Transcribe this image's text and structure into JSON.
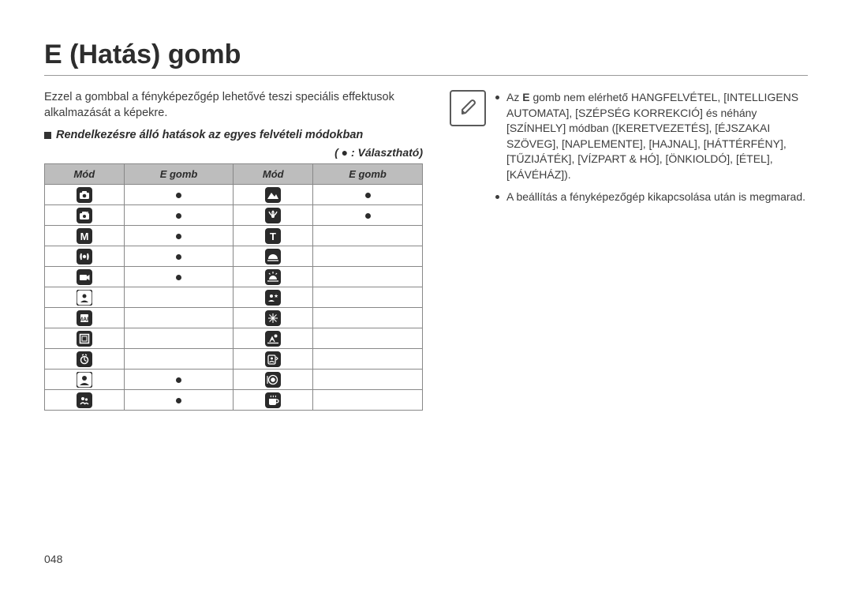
{
  "page": {
    "title": "E (Hatás) gomb",
    "intro": "Ezzel a gombbal a fényképezőgép lehetővé teszi speciális effektusok alkalmazását a képekre.",
    "section_heading": "Rendelkezésre álló hatások az egyes felvételi módokban",
    "section_subright": "( ● : Választható)",
    "page_number": "048"
  },
  "table": {
    "headers": [
      "Mód",
      "E gomb",
      "Mód",
      "E gomb"
    ],
    "col_widths": [
      "21%",
      "29%",
      "21%",
      "29%"
    ],
    "header_bg": "#bdbdbd",
    "border_color": "#888888",
    "rows": [
      {
        "l_icon": "camera-auto",
        "l_dot": true,
        "r_icon": "landscape",
        "r_dot": true
      },
      {
        "l_icon": "camera-p",
        "l_dot": true,
        "r_icon": "closeup",
        "r_dot": true
      },
      {
        "l_icon": "M",
        "l_dot": true,
        "r_icon": "T",
        "r_dot": false
      },
      {
        "l_icon": "dual-is",
        "l_dot": true,
        "r_icon": "sunset",
        "r_dot": false
      },
      {
        "l_icon": "movie",
        "l_dot": true,
        "r_icon": "dawn",
        "r_dot": false
      },
      {
        "l_icon": "portrait-night",
        "l_dot": false,
        "r_icon": "night-portrait",
        "r_dot": false
      },
      {
        "l_icon": "smart",
        "l_dot": false,
        "r_icon": "firework",
        "r_dot": false
      },
      {
        "l_icon": "frame",
        "l_dot": false,
        "r_icon": "beach-snow",
        "r_dot": false
      },
      {
        "l_icon": "self-timer",
        "l_dot": false,
        "r_icon": "self-shot",
        "r_dot": false
      },
      {
        "l_icon": "portrait",
        "l_dot": true,
        "r_icon": "food",
        "r_dot": false
      },
      {
        "l_icon": "children",
        "l_dot": true,
        "r_icon": "cafe",
        "r_dot": false
      }
    ]
  },
  "notes": {
    "item1_prefix": "Az ",
    "item1_bold": "E",
    "item1_rest": " gomb nem elérhető HANGFELVÉTEL, [INTELLIGENS AUTOMATA], [SZÉPSÉG KORREKCIÓ] és néhány [SZÍNHELY] módban ([KERETVEZETÉS], [ÉJSZAKAI SZÖVEG], [NAPLEMENTE], [HAJNAL], [HÁTTÉRFÉNY], [TŰZIJÁTÉK], [VÍZPART & HÓ], [ÖNKIOLDÓ], [ÉTEL], [KÁVÉHÁZ]).",
    "item2": "A beállítás a fényképezőgép kikapcsolása után is megmarad."
  },
  "colors": {
    "text": "#3a3a3a",
    "heading": "#2d2d2d",
    "icon_bg": "#2a2a2a",
    "icon_fg": "#ffffff"
  }
}
